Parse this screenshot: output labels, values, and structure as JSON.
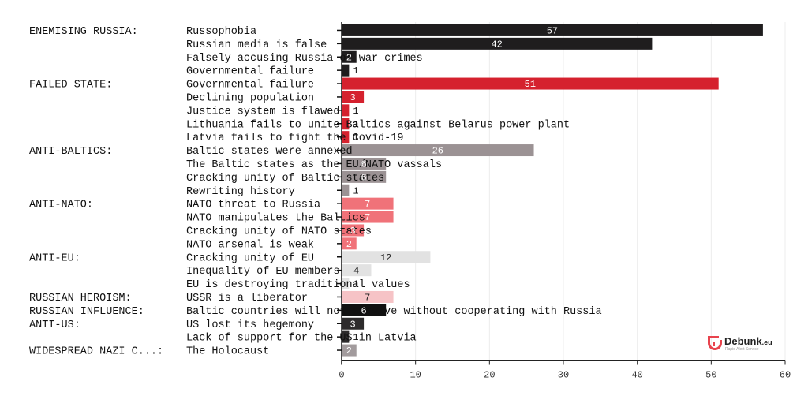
{
  "chart_data": {
    "type": "bar",
    "orientation": "horizontal",
    "xlim": [
      0,
      60
    ],
    "xticks": [
      0,
      10,
      20,
      30,
      40,
      50,
      60
    ],
    "grid": true,
    "colors": {
      "ENEMISING RUSSIA:": "#1f1d1e",
      "FAILED STATE:": "#d5212e",
      "ANTI-BALTICS:": "#9b9294",
      "ANTI-NATO:": "#f07279",
      "ANTI-EU:": "#e2e2e2",
      "RUSSIAN HEROISM:": "#f6c3c6",
      "RUSSIAN INFLUENCE:": "#111111",
      "ANTI-US:": "#2d2b2c",
      "WIDESPREAD NAZI C...:": "#a29b9d"
    },
    "rows": [
      {
        "group": "ENEMISING RUSSIA:",
        "label": "Russophobia",
        "value": 57
      },
      {
        "group": "",
        "label": "Russian media is false",
        "value": 42
      },
      {
        "group": "",
        "label": "Falsely accusing Russia of war crimes",
        "value": 2
      },
      {
        "group": "",
        "label": "Governmental failure",
        "value": 1
      },
      {
        "group": "FAILED STATE:",
        "label": "Governmental failure",
        "value": 51
      },
      {
        "group": "",
        "label": "Declining population",
        "value": 3
      },
      {
        "group": "",
        "label": "Justice system is flawed",
        "value": 1
      },
      {
        "group": "",
        "label": "Lithuania fails to unite Baltics against Belarus power plant",
        "value": 1
      },
      {
        "group": "",
        "label": "Latvia fails to fight the Covid-19",
        "value": 1
      },
      {
        "group": "ANTI-BALTICS:",
        "label": "Baltic states were annexed",
        "value": 26
      },
      {
        "group": "",
        "label": "The Baltic states as the EU/NATO vassals",
        "value": 6
      },
      {
        "group": "",
        "label": "Cracking unity of Baltic states",
        "value": 6
      },
      {
        "group": "",
        "label": "Rewriting history",
        "value": 1
      },
      {
        "group": "ANTI-NATO:",
        "label": "NATO threat to Russia",
        "value": 7
      },
      {
        "group": "",
        "label": "NATO manipulates the Baltics",
        "value": 7
      },
      {
        "group": "",
        "label": "Cracking unity of NATO states",
        "value": 3
      },
      {
        "group": "",
        "label": "NATO arsenal is weak",
        "value": 2
      },
      {
        "group": "ANTI-EU:",
        "label": "Cracking unity of EU",
        "value": 12
      },
      {
        "group": "",
        "label": "Inequality of EU members",
        "value": 4
      },
      {
        "group": "",
        "label": "EU is destroying traditional values",
        "value": 1
      },
      {
        "group": "RUSSIAN HEROISM:",
        "label": "USSR is a liberator",
        "value": 7
      },
      {
        "group": "RUSSIAN INFLUENCE:",
        "label": "Baltic countries will not survive without cooperating with Russia",
        "value": 6
      },
      {
        "group": "ANTI-US:",
        "label": "US lost its hegemony",
        "value": 3
      },
      {
        "group": "",
        "label": "Lack of support for the US in Latvia",
        "value": 1
      },
      {
        "group": "WIDESPREAD NAZI C...:",
        "label": "The Holocaust",
        "value": 2
      }
    ]
  },
  "logo": {
    "name": "Debunk",
    "suffix": ".eu",
    "tagline": "Rapid Alert Service"
  }
}
